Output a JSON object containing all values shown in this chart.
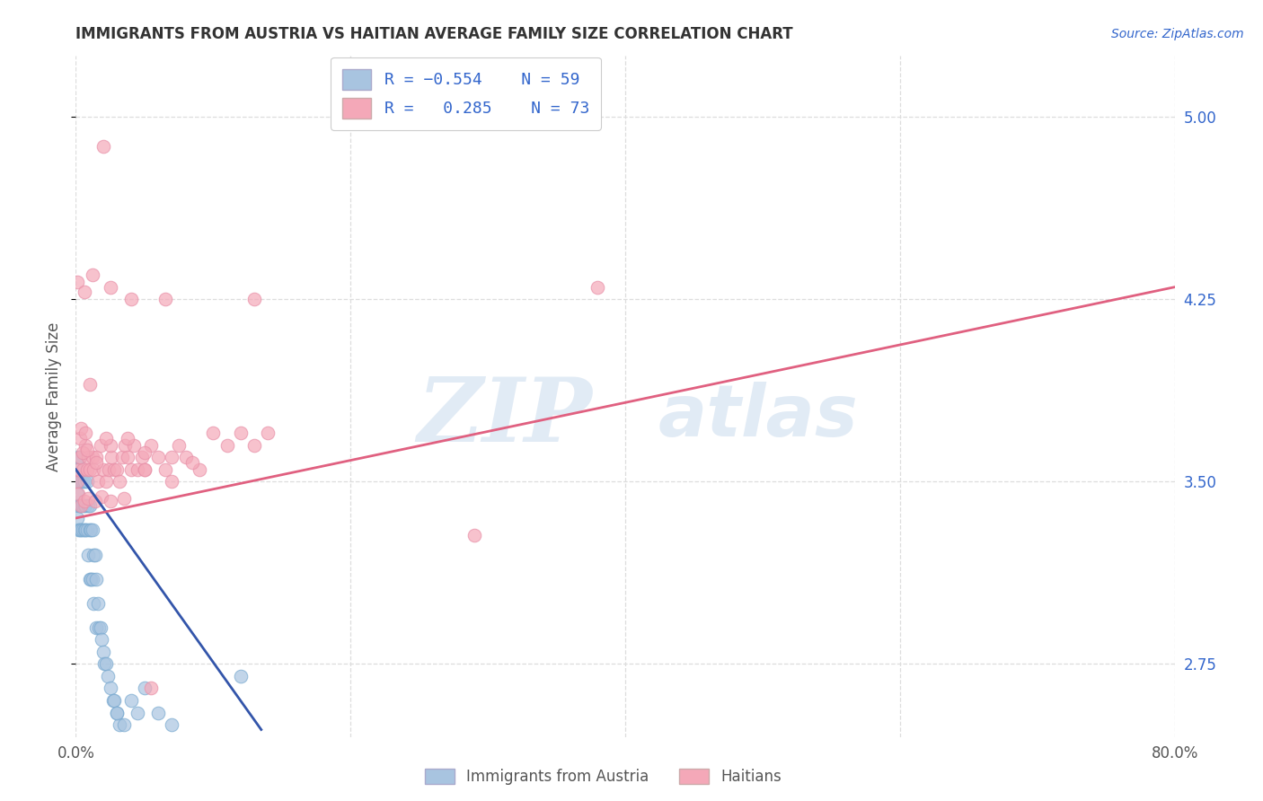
{
  "title": "IMMIGRANTS FROM AUSTRIA VS HAITIAN AVERAGE FAMILY SIZE CORRELATION CHART",
  "source": "Source: ZipAtlas.com",
  "ylabel": "Average Family Size",
  "xlim": [
    0.0,
    0.8
  ],
  "ylim": [
    2.45,
    5.25
  ],
  "yticks": [
    2.75,
    3.5,
    4.25,
    5.0
  ],
  "yticklabels_right": [
    "2.75",
    "3.50",
    "4.25",
    "5.00"
  ],
  "austria_color": "#a8c4e0",
  "austria_edge_color": "#7aaad0",
  "haitian_color": "#f4a8b8",
  "haitian_edge_color": "#e890a8",
  "austria_line_color": "#3355aa",
  "haitian_line_color": "#e06080",
  "legend_text_color": "#3366cc",
  "title_color": "#333333",
  "background_color": "#ffffff",
  "grid_color": "#dddddd",
  "austria_scatter_x": [
    0.001,
    0.001,
    0.001,
    0.002,
    0.002,
    0.002,
    0.002,
    0.003,
    0.003,
    0.003,
    0.003,
    0.004,
    0.004,
    0.004,
    0.005,
    0.005,
    0.005,
    0.006,
    0.006,
    0.006,
    0.007,
    0.007,
    0.008,
    0.008,
    0.009,
    0.009,
    0.01,
    0.01,
    0.01,
    0.011,
    0.011,
    0.012,
    0.012,
    0.013,
    0.013,
    0.014,
    0.015,
    0.015,
    0.016,
    0.017,
    0.018,
    0.019,
    0.02,
    0.021,
    0.022,
    0.023,
    0.025,
    0.027,
    0.028,
    0.03,
    0.032,
    0.035,
    0.04,
    0.045,
    0.05,
    0.06,
    0.07,
    0.12,
    0.03
  ],
  "austria_scatter_y": [
    3.55,
    3.45,
    3.35,
    3.6,
    3.5,
    3.4,
    3.3,
    3.6,
    3.5,
    3.4,
    3.3,
    3.5,
    3.4,
    3.3,
    3.5,
    3.4,
    3.3,
    3.5,
    3.4,
    3.3,
    3.4,
    3.3,
    3.5,
    3.3,
    3.4,
    3.2,
    3.4,
    3.3,
    3.1,
    3.3,
    3.1,
    3.3,
    3.1,
    3.2,
    3.0,
    3.2,
    3.1,
    2.9,
    3.0,
    2.9,
    2.9,
    2.85,
    2.8,
    2.75,
    2.75,
    2.7,
    2.65,
    2.6,
    2.6,
    2.55,
    2.5,
    2.5,
    2.6,
    2.55,
    2.65,
    2.55,
    2.5,
    2.7,
    2.55
  ],
  "haitian_scatter_x": [
    0.001,
    0.002,
    0.003,
    0.005,
    0.007,
    0.008,
    0.009,
    0.01,
    0.012,
    0.013,
    0.015,
    0.016,
    0.018,
    0.02,
    0.022,
    0.024,
    0.026,
    0.028,
    0.03,
    0.032,
    0.034,
    0.036,
    0.038,
    0.04,
    0.042,
    0.045,
    0.048,
    0.05,
    0.055,
    0.06,
    0.065,
    0.07,
    0.075,
    0.08,
    0.09,
    0.1,
    0.11,
    0.12,
    0.13,
    0.14,
    0.002,
    0.004,
    0.006,
    0.009,
    0.014,
    0.019,
    0.025,
    0.035,
    0.05,
    0.07,
    0.003,
    0.005,
    0.008,
    0.015,
    0.025,
    0.05,
    0.085,
    0.004,
    0.007,
    0.022,
    0.038,
    0.29,
    0.001,
    0.006,
    0.012,
    0.025,
    0.04,
    0.065,
    0.13,
    0.01,
    0.02,
    0.055,
    0.38
  ],
  "haitian_scatter_y": [
    3.5,
    3.55,
    3.6,
    3.55,
    3.65,
    3.55,
    3.6,
    3.55,
    3.6,
    3.55,
    3.6,
    3.5,
    3.65,
    3.55,
    3.5,
    3.55,
    3.6,
    3.55,
    3.55,
    3.5,
    3.6,
    3.65,
    3.6,
    3.55,
    3.65,
    3.55,
    3.6,
    3.55,
    3.65,
    3.6,
    3.55,
    3.6,
    3.65,
    3.6,
    3.55,
    3.7,
    3.65,
    3.7,
    3.65,
    3.7,
    3.45,
    3.4,
    3.42,
    3.43,
    3.42,
    3.44,
    3.42,
    3.43,
    3.55,
    3.5,
    3.68,
    3.62,
    3.63,
    3.58,
    3.65,
    3.62,
    3.58,
    3.72,
    3.7,
    3.68,
    3.68,
    3.28,
    4.32,
    4.28,
    4.35,
    4.3,
    4.25,
    4.25,
    4.25,
    3.9,
    4.88,
    2.65,
    4.3
  ],
  "austria_trendline_x": [
    0.0,
    0.135
  ],
  "austria_trendline_y": [
    3.55,
    2.48
  ],
  "haitian_trendline_x": [
    0.0,
    0.8
  ],
  "haitian_trendline_y": [
    3.35,
    4.3
  ],
  "watermark_zip": "ZIP",
  "watermark_atlas": "atlas",
  "legend_fontsize": 13,
  "title_fontsize": 12,
  "axis_label_fontsize": 12,
  "tick_fontsize": 12
}
